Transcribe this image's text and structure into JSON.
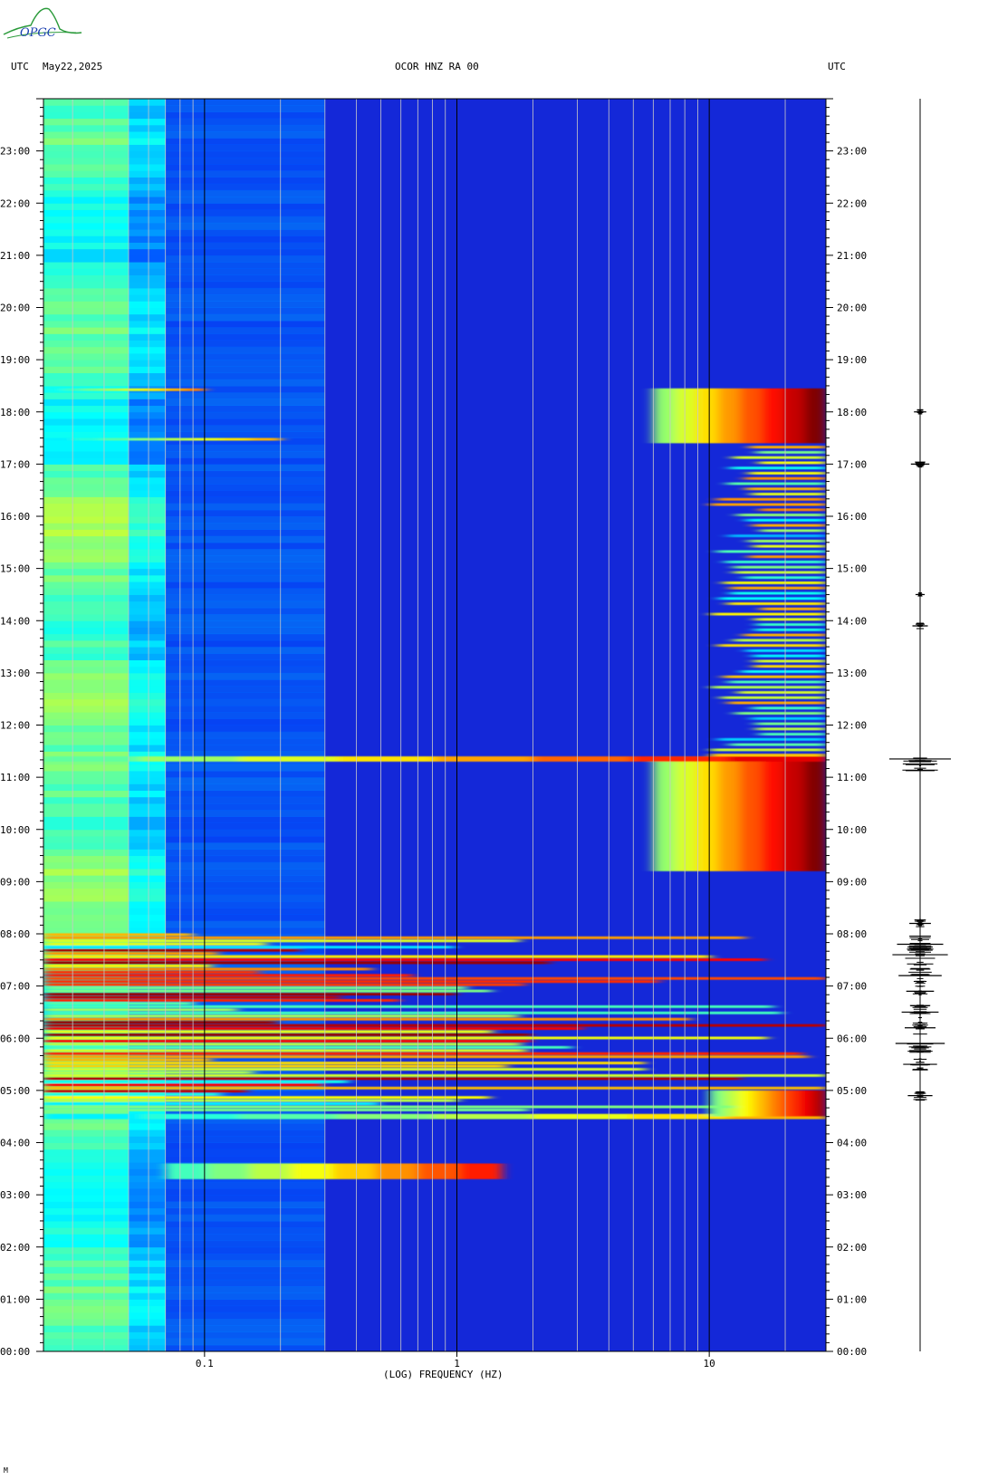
{
  "header": {
    "left_tz": "UTC",
    "date": "May22,2025",
    "station": "OCOR HNZ RA 00",
    "right_tz": "UTC"
  },
  "logo": {
    "text": "OPGC"
  },
  "footer_mark": "M",
  "colors": {
    "background_blue": "#1428d8",
    "hot_red": "#9a0000",
    "yellow": "#f0e020",
    "cyan": "#30d8f0"
  },
  "chart_data": {
    "type": "heatmap",
    "title": "OCOR HNZ RA 00",
    "xlabel": "(LOG) FREQUENCY (HZ)",
    "ylabel": "",
    "x_scale": "log",
    "xlim": [
      0.023,
      29
    ],
    "x_ticks": [
      {
        "value": 0.1,
        "label": "0.1"
      },
      {
        "value": 1,
        "label": "1"
      },
      {
        "value": 10,
        "label": "10"
      }
    ],
    "y_unit": "hours UTC",
    "ylim": [
      0,
      24
    ],
    "y_ticks": [
      {
        "value": 0,
        "label": "00:00"
      },
      {
        "value": 1,
        "label": "01:00"
      },
      {
        "value": 2,
        "label": "02:00"
      },
      {
        "value": 3,
        "label": "03:00"
      },
      {
        "value": 4,
        "label": "04:00"
      },
      {
        "value": 5,
        "label": "05:00"
      },
      {
        "value": 6,
        "label": "06:00"
      },
      {
        "value": 7,
        "label": "07:00"
      },
      {
        "value": 8,
        "label": "08:00"
      },
      {
        "value": 9,
        "label": "09:00"
      },
      {
        "value": 10,
        "label": "10:00"
      },
      {
        "value": 11,
        "label": "11:00"
      },
      {
        "value": 12,
        "label": "12:00"
      },
      {
        "value": 13,
        "label": "13:00"
      },
      {
        "value": 14,
        "label": "14:00"
      },
      {
        "value": 15,
        "label": "15:00"
      },
      {
        "value": 16,
        "label": "16:00"
      },
      {
        "value": 17,
        "label": "17:00"
      },
      {
        "value": 18,
        "label": "18:00"
      },
      {
        "value": 19,
        "label": "19:00"
      },
      {
        "value": 20,
        "label": "20:00"
      },
      {
        "value": 21,
        "label": "21:00"
      },
      {
        "value": 22,
        "label": "22:00"
      },
      {
        "value": 23,
        "label": "23:00"
      }
    ],
    "grid_frequencies_hz": [
      0.03,
      0.04,
      0.05,
      0.06,
      0.07,
      0.08,
      0.09,
      0.1,
      0.2,
      0.3,
      0.4,
      0.5,
      0.6,
      0.7,
      0.8,
      0.9,
      1,
      2,
      3,
      4,
      5,
      6,
      7,
      8,
      9,
      10,
      20
    ],
    "low_freq_band_hz": [
      0.023,
      0.1
    ],
    "energy_events": [
      {
        "name": "event-0330",
        "start_h": 3.3,
        "end_h": 3.6,
        "f_min_hz": 0.07,
        "f_max_hz": 1.5,
        "level": 0.85
      },
      {
        "name": "event-0430",
        "start_h": 4.45,
        "end_h": 4.55,
        "f_min_hz": 0.023,
        "f_max_hz": 29,
        "level": 0.7
      },
      {
        "name": "event-0440",
        "start_h": 4.5,
        "end_h": 5.0,
        "f_min_hz": 10,
        "f_max_hz": 29,
        "level": 0.95
      },
      {
        "name": "swarm-0500-0800",
        "start_h": 4.6,
        "end_h": 8.0,
        "f_min_hz": 0.023,
        "f_max_hz": 29,
        "level": 0.9
      },
      {
        "name": "event-1120",
        "start_h": 9.2,
        "end_h": 11.4,
        "f_min_hz": 6,
        "f_max_hz": 29,
        "level": 1.0
      },
      {
        "name": "event-1121",
        "start_h": 11.3,
        "end_h": 11.4,
        "f_min_hz": 0.023,
        "f_max_hz": 29,
        "level": 0.9
      },
      {
        "name": "activity-1100-1730",
        "start_h": 11.4,
        "end_h": 17.4,
        "f_min_hz": 10,
        "f_max_hz": 29,
        "level": 0.5
      },
      {
        "name": "event-1745",
        "start_h": 17.4,
        "end_h": 18.45,
        "f_min_hz": 6,
        "f_max_hz": 29,
        "level": 1.0
      },
      {
        "name": "edge-1826",
        "start_h": 18.4,
        "end_h": 18.45,
        "f_min_hz": 0.023,
        "f_max_hz": 0.1,
        "level": 0.75
      },
      {
        "name": "edge-1728",
        "start_h": 17.45,
        "end_h": 17.5,
        "f_min_hz": 0.023,
        "f_max_hz": 0.2,
        "level": 0.7
      }
    ],
    "seismogram": {
      "description_bursts": [
        {
          "time_h": 4.9,
          "amplitude": 0.4
        },
        {
          "time_h": 5.5,
          "amplitude": 0.55
        },
        {
          "time_h": 5.9,
          "amplitude": 0.8
        },
        {
          "time_h": 6.2,
          "amplitude": 0.5
        },
        {
          "time_h": 6.5,
          "amplitude": 0.6
        },
        {
          "time_h": 6.9,
          "amplitude": 0.45
        },
        {
          "time_h": 7.2,
          "amplitude": 0.7
        },
        {
          "time_h": 7.6,
          "amplitude": 0.9
        },
        {
          "time_h": 7.8,
          "amplitude": 0.75
        },
        {
          "time_h": 8.2,
          "amplitude": 0.35
        },
        {
          "time_h": 11.35,
          "amplitude": 1.0
        },
        {
          "time_h": 13.9,
          "amplitude": 0.25
        },
        {
          "time_h": 14.5,
          "amplitude": 0.15
        },
        {
          "time_h": 17.0,
          "amplitude": 0.3
        },
        {
          "time_h": 18.0,
          "amplitude": 0.2
        }
      ]
    }
  }
}
